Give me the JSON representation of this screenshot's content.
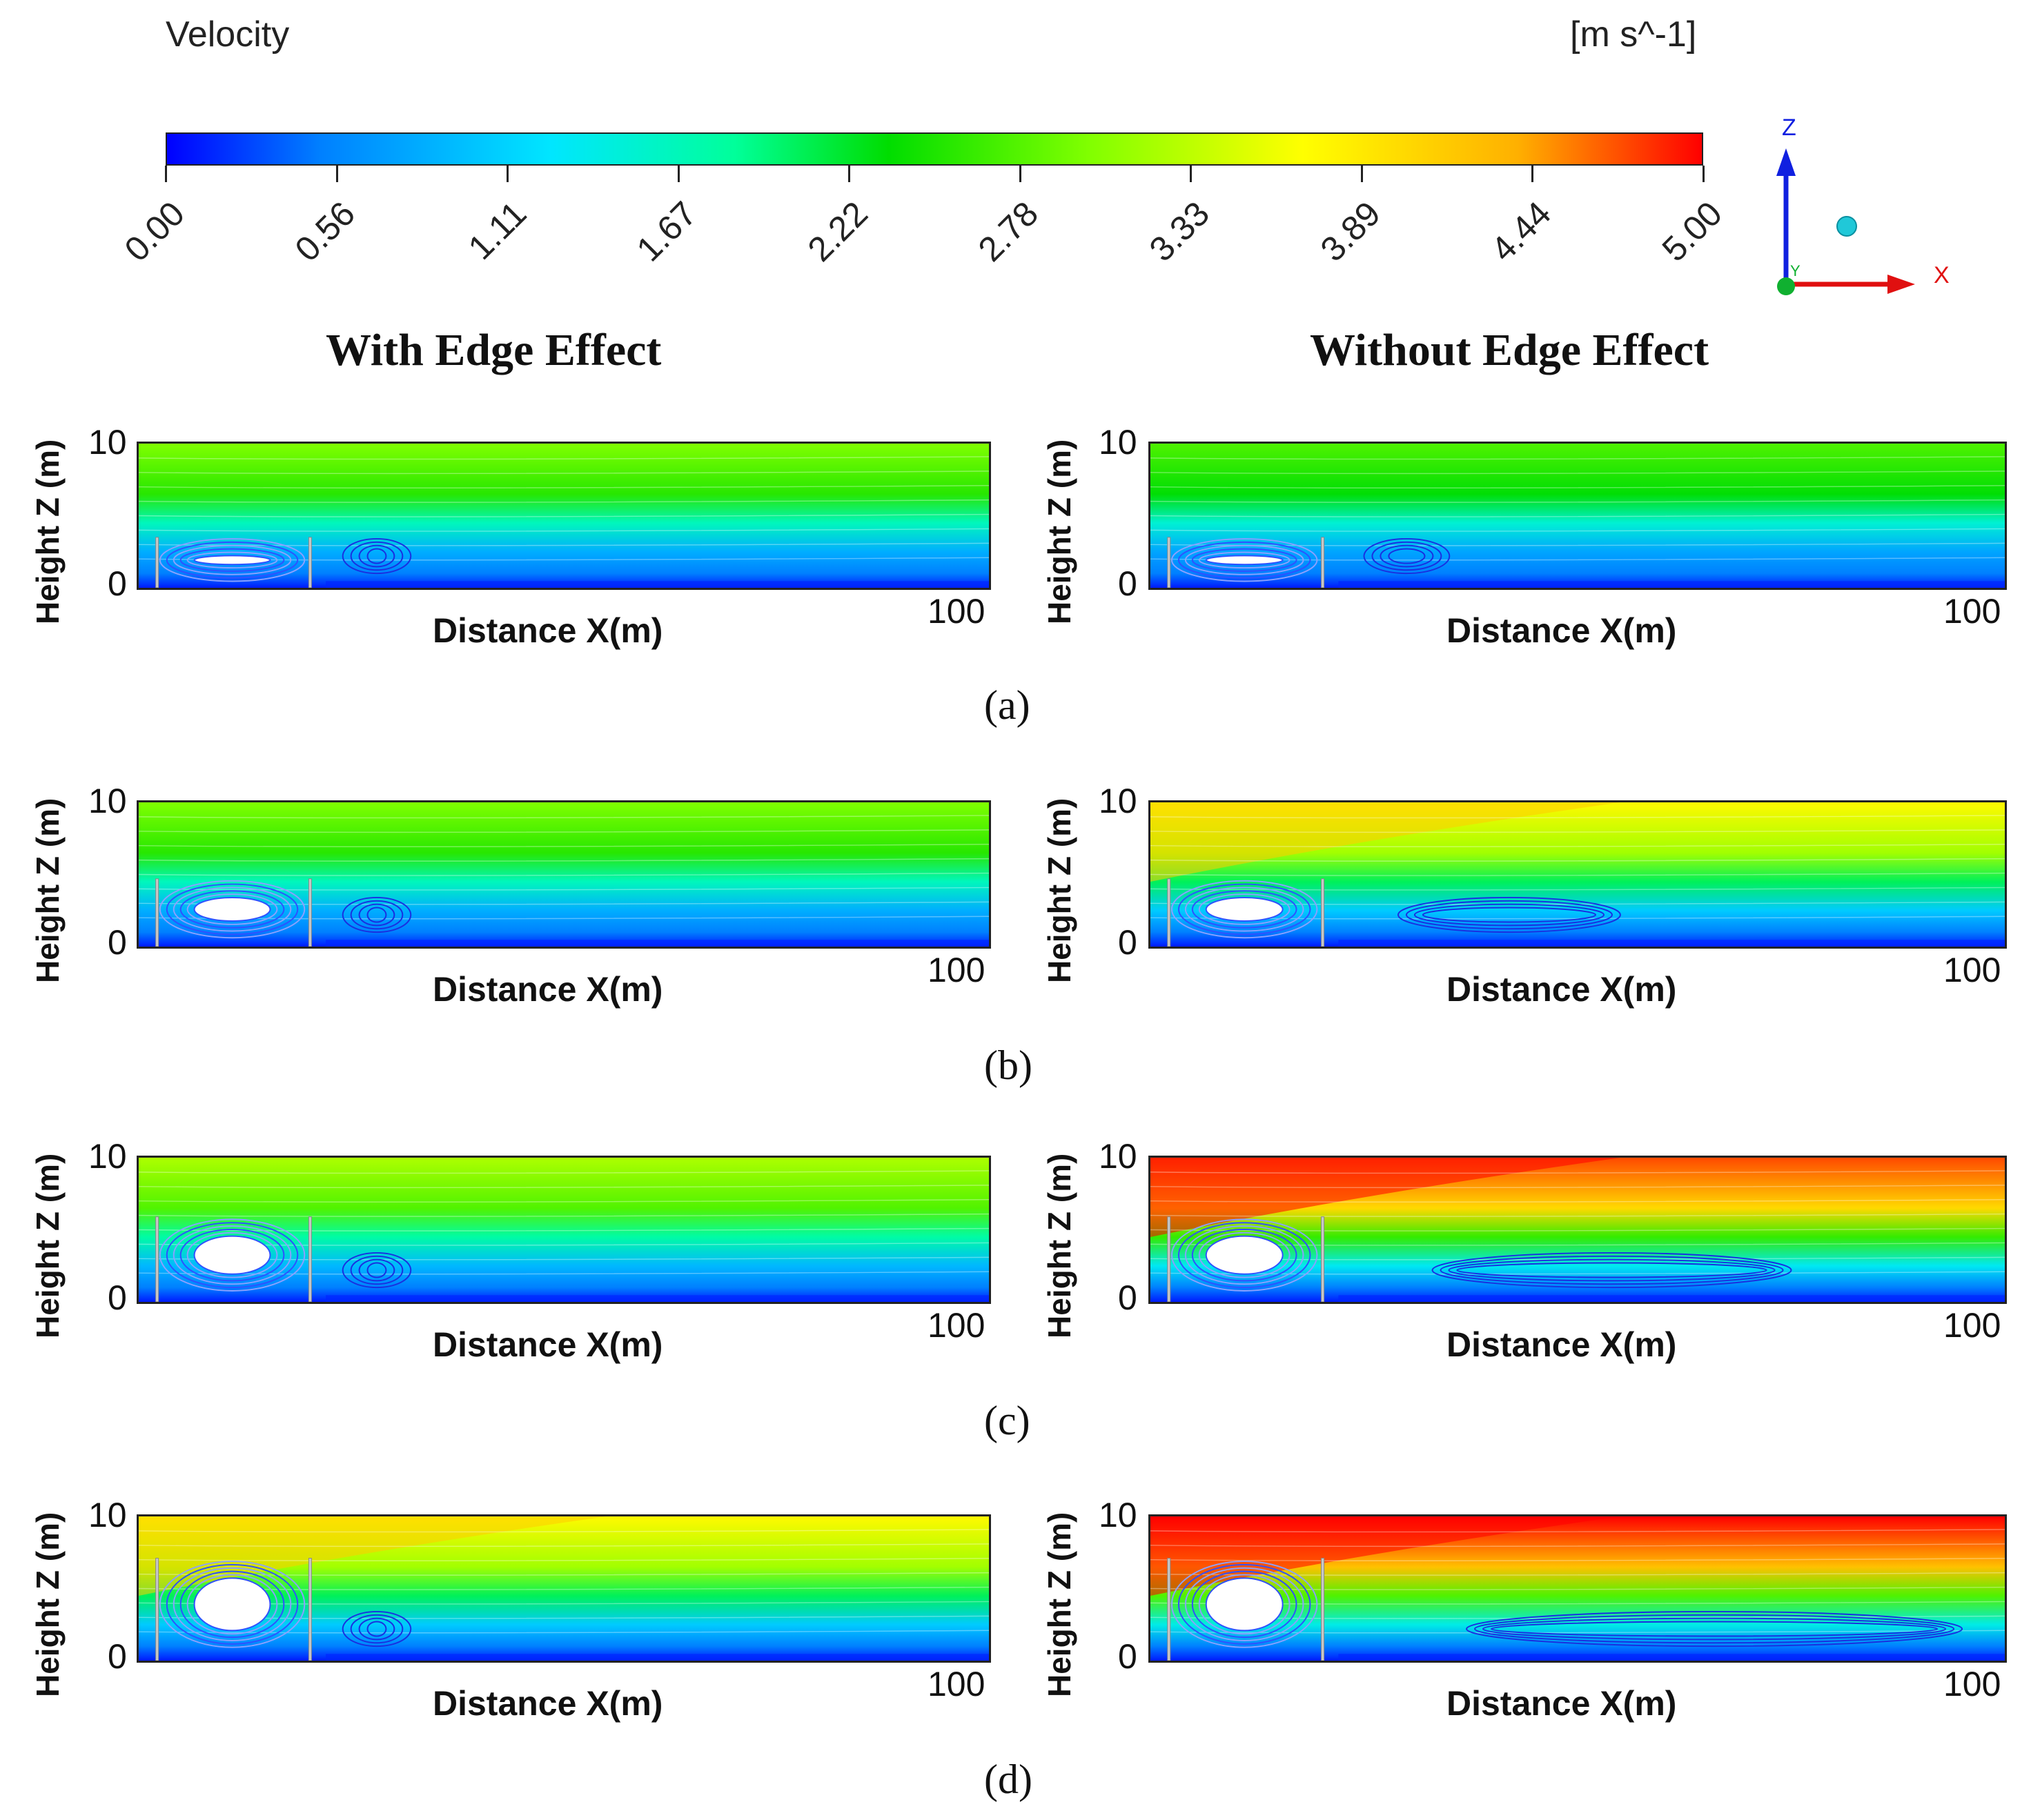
{
  "legend": {
    "variable": "Velocity",
    "unit": "[m s^-1]",
    "ticks": [
      "0.00",
      "0.56",
      "1.11",
      "1.67",
      "2.22",
      "2.78",
      "3.33",
      "3.89",
      "4.44",
      "5.00"
    ],
    "colors": [
      "#0000ff",
      "#0080ff",
      "#00ffff",
      "#00ff80",
      "#00e000",
      "#80ff00",
      "#ffff00",
      "#ffc000",
      "#ff6000",
      "#ff0000"
    ]
  },
  "axes_triad": {
    "z": "Z",
    "x": "X",
    "y": "Y"
  },
  "columns": {
    "left": "With Edge Effect",
    "right": "Without Edge Effect"
  },
  "axis": {
    "xlabel": "Distance X(m)",
    "ylabel": "Height Z (m)",
    "x_max": "100",
    "y_top": "10",
    "y_bottom": "0"
  },
  "panels": [
    {
      "label": "(a)",
      "left_level": 0.6,
      "right_level": 0.55
    },
    {
      "label": "(b)",
      "left_level": 0.6,
      "right_level": 0.75
    },
    {
      "label": "(c)",
      "left_level": 0.65,
      "right_level": 0.95
    },
    {
      "label": "(d)",
      "left_level": 0.75,
      "right_level": 1.0
    }
  ]
}
